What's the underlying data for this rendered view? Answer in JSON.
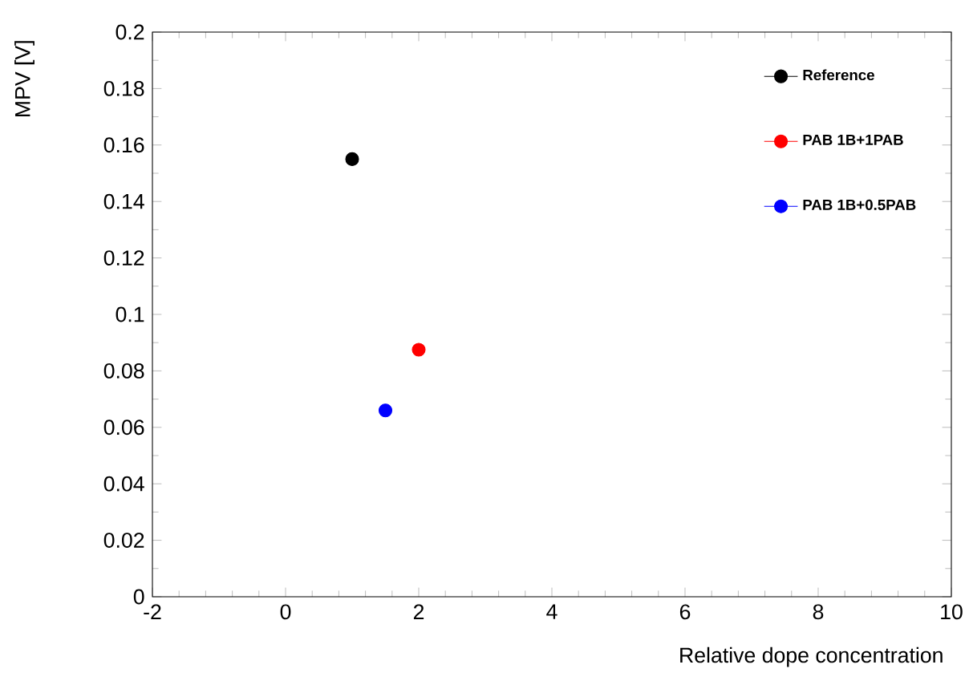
{
  "chart_data": {
    "type": "scatter",
    "xlabel": "Relative dope concentration",
    "ylabel": "MPV [V]",
    "series": [
      {
        "name": "Reference",
        "color": "#000000",
        "x": [
          1.0
        ],
        "values": [
          0.155
        ]
      },
      {
        "name": "PAB 1B+1PAB",
        "color": "#ff0000",
        "x": [
          2.0
        ],
        "values": [
          0.0875
        ]
      },
      {
        "name": "PAB 1B+0.5PAB",
        "color": "#0000ff",
        "x": [
          1.5
        ],
        "values": [
          0.066
        ]
      }
    ],
    "xlim": [
      -2,
      10
    ],
    "xticks": [
      -2,
      0,
      2,
      4,
      6,
      8,
      10
    ],
    "ylim": [
      0,
      0.2
    ],
    "yticks": [
      0,
      0.02,
      0.04,
      0.06,
      0.08,
      0.1,
      0.12,
      0.14,
      0.16,
      0.18,
      0.2
    ],
    "legend": "top right",
    "marker": "circle",
    "grid": false
  }
}
